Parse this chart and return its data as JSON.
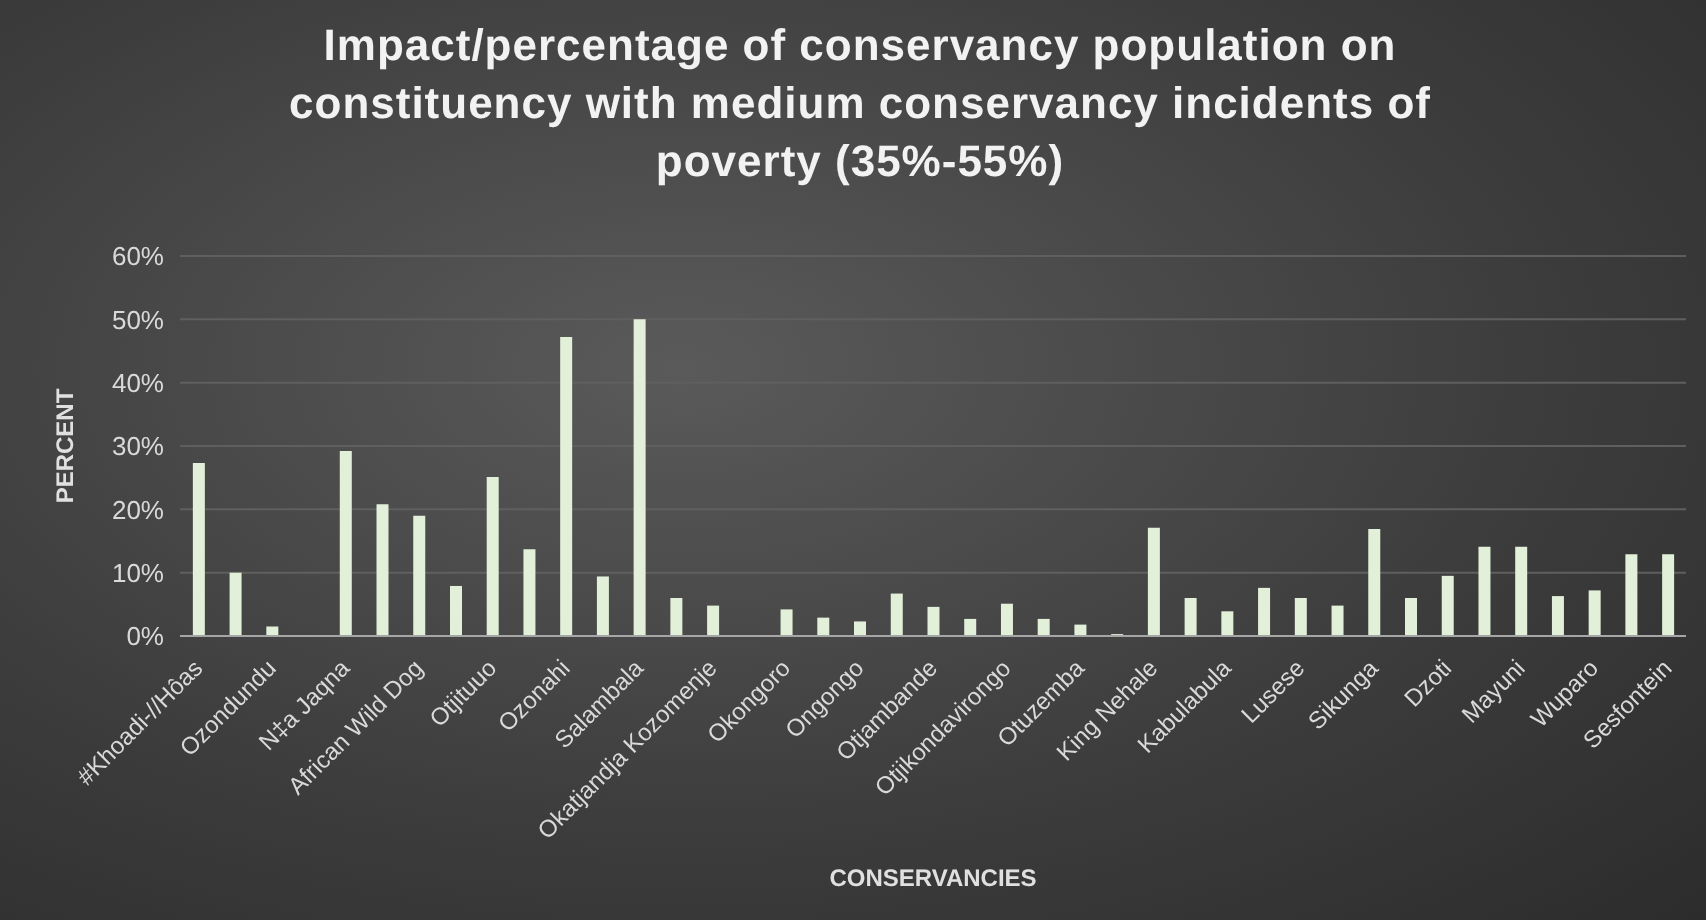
{
  "chart_data": {
    "type": "bar",
    "title": "Impact/percentage of conservancy population on constituency with medium conservancy incidents of poverty (35%-55%)",
    "xlabel": "CONSERVANCIES",
    "ylabel": "PERCENT",
    "categories": [
      "#Khoadi-//Hôas",
      null,
      "Ozondundu",
      null,
      "N‡a Jaqna",
      null,
      "African Wild Dog",
      null,
      "Otjituuo",
      null,
      "Ozonahi",
      null,
      "Salambala",
      null,
      "Okatjandja Kozomenje",
      null,
      "Okongoro",
      null,
      "Ongongo",
      null,
      "Otjambande",
      null,
      "Otjikondavirongo",
      null,
      "Otuzemba",
      null,
      "King Nehale",
      null,
      "Kabulabula",
      null,
      "Lusese",
      null,
      "Sikunga",
      null,
      "Dzoti",
      null,
      "Mayuni",
      null,
      "Wuparo",
      null,
      "Sesfontein"
    ],
    "values": [
      27.3,
      10.0,
      1.5,
      0.1,
      29.2,
      20.8,
      19.0,
      7.9,
      25.1,
      13.7,
      47.2,
      9.4,
      50.0,
      6.0,
      4.8,
      0.1,
      4.2,
      2.9,
      2.3,
      6.7,
      4.6,
      2.7,
      5.1,
      2.7,
      1.8,
      0.3,
      17.1,
      6.0,
      3.9,
      7.6,
      6.0,
      4.8,
      16.9,
      6.0,
      9.5,
      14.1,
      14.1,
      6.3,
      7.2,
      12.9,
      12.9
    ],
    "color": "#e2f0d9",
    "ylim": [
      0,
      60
    ],
    "yticks": [
      {
        "value": 0,
        "label": "0%"
      },
      {
        "value": 10,
        "label": "10%"
      },
      {
        "value": 20,
        "label": "20%"
      },
      {
        "value": 30,
        "label": "30%"
      },
      {
        "value": 40,
        "label": "40%"
      },
      {
        "value": 50,
        "label": "50%"
      },
      {
        "value": 60,
        "label": "60%"
      }
    ],
    "grid": "y",
    "legend": false
  }
}
